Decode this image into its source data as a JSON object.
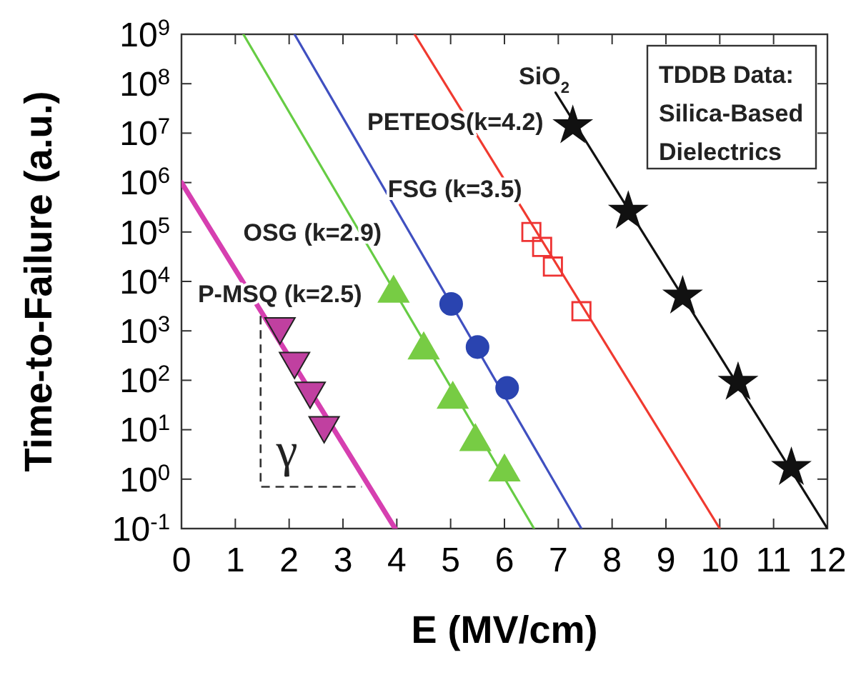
{
  "chart_data": {
    "type": "scatter",
    "title": "TDDB Data:\nSilica-Based\nDielectrics",
    "xlabel": "E (MV/cm)",
    "ylabel": "Time-to-Failure (a.u.)",
    "log": "y",
    "legend": false,
    "grid": false,
    "xlim": [
      0,
      12
    ],
    "xticks": [
      0,
      1,
      2,
      3,
      4,
      5,
      6,
      7,
      8,
      9,
      10,
      11,
      12
    ],
    "ylim": [
      0.1,
      1000000000
    ],
    "yticks": [
      {
        "value": 0.1,
        "label": "10$^{-1}$"
      },
      {
        "value": 1,
        "label": "10$^{0}$"
      },
      {
        "value": 10,
        "label": "10$^{1}$"
      },
      {
        "value": 100,
        "label": "10$^{2}$"
      },
      {
        "value": 1000,
        "label": "10$^{3}$"
      },
      {
        "value": 10000,
        "label": "10$^{4}$"
      },
      {
        "value": 100000,
        "label": "10$^{5}$"
      },
      {
        "value": 1000000,
        "label": "10$^{6}$"
      },
      {
        "value": 10000000,
        "label": "10$^{7}$"
      },
      {
        "value": 100000000,
        "label": "10$^{8}$"
      },
      {
        "value": 1000000000,
        "label": "10$^{9}$"
      }
    ],
    "series": [
      {
        "type": "line",
        "name": "P-MSQ (k=2.5)",
        "color": "#d63fb0",
        "x": [
          0,
          3.97
        ],
        "values": [
          1000000,
          0.1
        ],
        "marker": "none"
      },
      {
        "type": "line",
        "name": "OSG (k=2.9)",
        "color": "#66cc44",
        "x": [
          1.15,
          6.55
        ],
        "values": [
          1000000000,
          0.1
        ],
        "marker": "none"
      },
      {
        "type": "line",
        "name": "FSG (k=3.5)",
        "color": "#4050c0",
        "x": [
          2.1,
          7.43
        ],
        "values": [
          1000000000,
          0.1
        ],
        "marker": "none"
      },
      {
        "type": "line",
        "name": "PETEOS(k=4.2)",
        "color": "#f03a30",
        "x": [
          4.33,
          10.0
        ],
        "values": [
          1000000000,
          0.1
        ],
        "marker": "none"
      },
      {
        "type": "line",
        "name": "SiO$_{2}$",
        "color": "#111111",
        "x": [
          6.95,
          12
        ],
        "values": [
          66000000,
          0.1
        ],
        "marker": "none"
      },
      {
        "color": "#c040a0",
        "x": [
          1.83,
          2.1,
          2.39,
          2.65
        ],
        "values": [
          1000,
          200,
          50,
          10
        ],
        "marker": "triangle-down"
      },
      {
        "color": "#77cc44",
        "x": [
          3.94,
          4.5,
          5.04,
          5.46,
          6.0
        ],
        "values": [
          7000,
          500,
          50,
          7,
          1.7
        ],
        "marker": "triangle"
      },
      {
        "color": "#2a44b0",
        "x": [
          5.01,
          5.5,
          6.05
        ],
        "values": [
          3500,
          470,
          70
        ],
        "marker": "circle"
      },
      {
        "color": "#ee3333",
        "x": [
          6.5,
          6.7,
          6.9,
          7.43
        ],
        "values": [
          100000,
          50000,
          20000,
          2500
        ],
        "marker": "square"
      },
      {
        "color": "#111111",
        "x": [
          7.27,
          8.3,
          9.31,
          10.34,
          11.33
        ],
        "values": [
          14000000,
          260000,
          5000,
          90,
          1.7
        ],
        "marker": "star"
      }
    ],
    "annotations": [
      "γ"
    ]
  }
}
